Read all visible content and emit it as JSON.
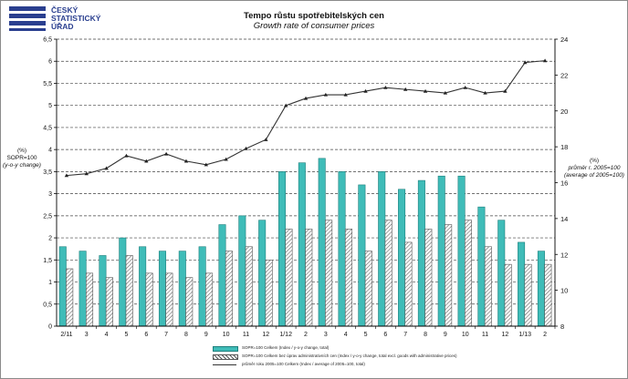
{
  "header": {
    "logo_lines": [
      "ČESKÝ",
      "STATISTICKÝ",
      "ÚŘAD"
    ],
    "title": "Tempo růstu spotřebitelských cen",
    "subtitle": "Growth rate of consumer prices"
  },
  "axes": {
    "left_label_lines": [
      "(%)",
      "SOPR=100",
      "(y-o-y change)"
    ],
    "right_label_lines": [
      "(%)",
      "průměr r. 2005=100",
      "(average of 2005=100)"
    ]
  },
  "legend": [
    {
      "text": "SOPR=100 Celkem (Index / y-o-y change, total)",
      "color": "#3fbcb8"
    },
    {
      "text": "SOPR=100 Celkem bez úprav administrativních cen (Index / y-o-y change, total excl. goods with administrative prices)",
      "color": "#cfcfcf"
    },
    {
      "text": "průměr roku 2005=100 Celkem (Index / average of 2005=100, total)",
      "color": "#333333"
    }
  ],
  "chart_data": {
    "type": "bar",
    "categories": [
      "2/11",
      "3",
      "4",
      "5",
      "6",
      "7",
      "8",
      "9",
      "10",
      "11",
      "12",
      "1/12",
      "2",
      "3",
      "4",
      "5",
      "6",
      "7",
      "8",
      "9",
      "10",
      "11",
      "12",
      "1/13",
      "2"
    ],
    "series": [
      {
        "name": "SOPR=100 Celkem (Index / y-o-y change, total)",
        "axis": "left",
        "kind": "bar",
        "values": [
          1.8,
          1.7,
          1.6,
          2.0,
          1.8,
          1.7,
          1.7,
          1.8,
          2.3,
          2.5,
          2.4,
          3.5,
          3.7,
          3.8,
          3.5,
          3.2,
          3.5,
          3.1,
          3.3,
          3.4,
          3.4,
          2.7,
          2.4,
          1.9,
          1.7
        ]
      },
      {
        "name": "SOPR=100 Celkem bez úprav administrativních cen (Index / y-o-y change, total excl. goods with administrative prices)",
        "axis": "left",
        "kind": "hatched-bar",
        "values": [
          1.3,
          1.2,
          1.1,
          1.6,
          1.2,
          1.2,
          1.1,
          1.2,
          1.7,
          1.8,
          1.5,
          2.2,
          2.2,
          2.4,
          2.2,
          1.7,
          2.4,
          1.9,
          2.2,
          2.3,
          2.4,
          1.8,
          1.4,
          1.4,
          1.4
        ]
      },
      {
        "name": "průměr roku 2005=100 Celkem (Index / average of 2005=100, total)",
        "axis": "right",
        "kind": "line",
        "values": [
          16.4,
          16.5,
          16.8,
          17.5,
          17.2,
          17.6,
          17.2,
          17.0,
          17.3,
          17.9,
          18.4,
          20.3,
          20.7,
          20.9,
          20.9,
          21.1,
          21.3,
          21.2,
          21.1,
          21.0,
          21.3,
          21.0,
          21.1,
          22.7,
          22.8
        ]
      }
    ],
    "y_left": {
      "min": 0,
      "max": 6.5,
      "step": 0.5,
      "tick_labels": [
        "0",
        "0,5",
        "1",
        "1,5",
        "2",
        "2,5",
        "3",
        "3,5",
        "4",
        "4,5",
        "5",
        "5,5",
        "6",
        "6,5"
      ]
    },
    "y_right": {
      "min": 8,
      "max": 24,
      "step": 2,
      "tick_labels": [
        "8",
        "10",
        "12",
        "14",
        "16",
        "18",
        "20",
        "22",
        "24"
      ]
    },
    "grid": "horizontal-dashed",
    "legend_position": "bottom"
  },
  "colors": {
    "bar_teal": "#3fbcb8",
    "bar_teal_dark": "#1d7f7c",
    "hatch": "#555555",
    "line": "#333333",
    "logo_blue": "#2a3f8f"
  }
}
